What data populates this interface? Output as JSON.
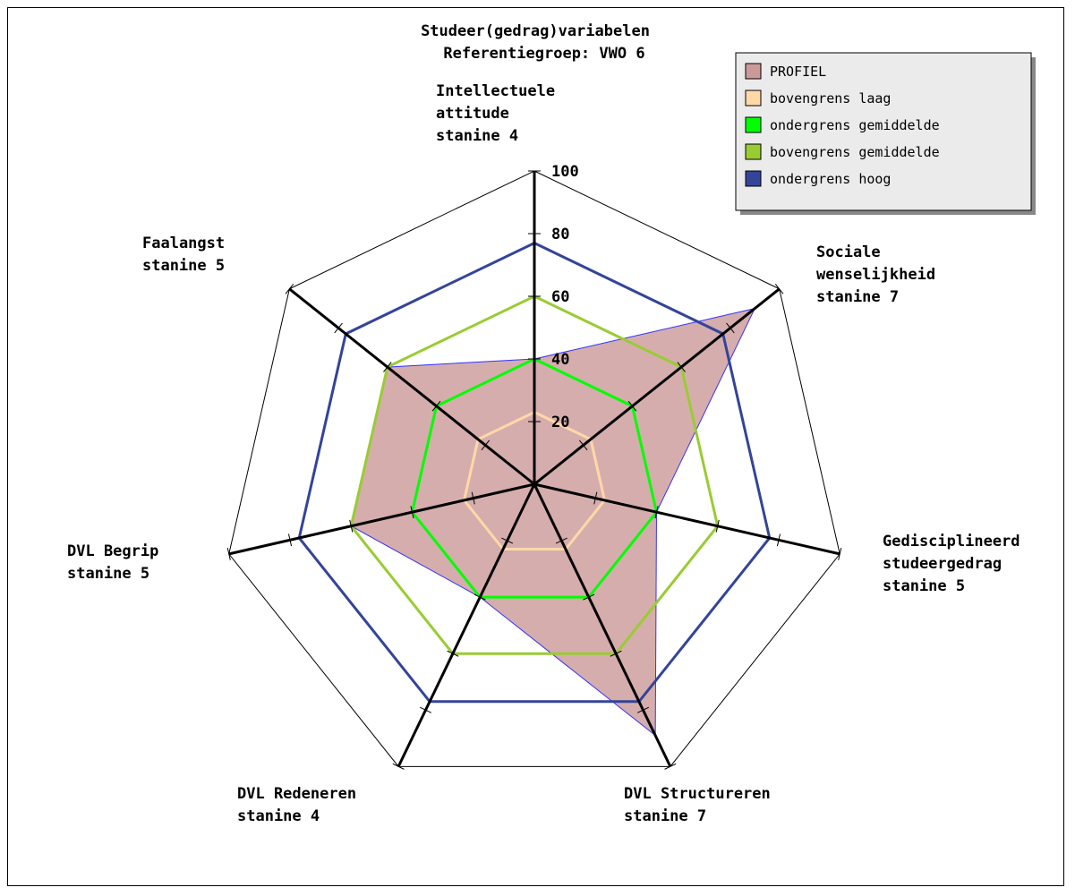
{
  "chart_data": {
    "type": "radar",
    "title": "Studeer(gedrag)variabelen",
    "subtitle": "Referentiegroep: VWO 6",
    "rlim": [
      0,
      100
    ],
    "ticks": [
      "20",
      "40",
      "60",
      "80",
      "100"
    ],
    "tick_values": [
      20,
      40,
      60,
      80,
      100
    ],
    "categories": [
      {
        "lines": [
          "Intellectuele",
          "attitude",
          "stanine 4"
        ]
      },
      {
        "lines": [
          "Sociale",
          "wenselijkheid",
          "stanine 7"
        ]
      },
      {
        "lines": [
          "Gedisciplineerd",
          "studeergedrag",
          "stanine 5"
        ]
      },
      {
        "lines": [
          "DVL Structureren",
          "stanine 7"
        ]
      },
      {
        "lines": [
          "DVL Redeneren",
          "stanine 4"
        ]
      },
      {
        "lines": [
          "DVL Begrip",
          "stanine 5"
        ]
      },
      {
        "lines": [
          "Faalangst",
          "stanine 5"
        ]
      }
    ],
    "series": [
      {
        "name": "PROFIEL",
        "color": "#cc9999",
        "stroke": "#3333ff",
        "values": [
          40,
          90,
          40,
          89,
          40,
          60,
          60
        ]
      },
      {
        "name": "bovengrens laag",
        "color": "#ffd8a8",
        "values": [
          23,
          23,
          23,
          23,
          23,
          23,
          23
        ]
      },
      {
        "name": "ondergrens gemiddelde",
        "color": "#00ff00",
        "values": [
          40,
          40,
          40,
          40,
          40,
          40,
          40
        ]
      },
      {
        "name": "bovengrens gemiddelde",
        "color": "#99cc33",
        "values": [
          60,
          60,
          60,
          60,
          60,
          60,
          60
        ]
      },
      {
        "name": "ondergrens hoog",
        "color": "#334499",
        "values": [
          77,
          77,
          77,
          77,
          77,
          77,
          77
        ]
      }
    ],
    "legend_position": "top-right",
    "grid": true
  }
}
